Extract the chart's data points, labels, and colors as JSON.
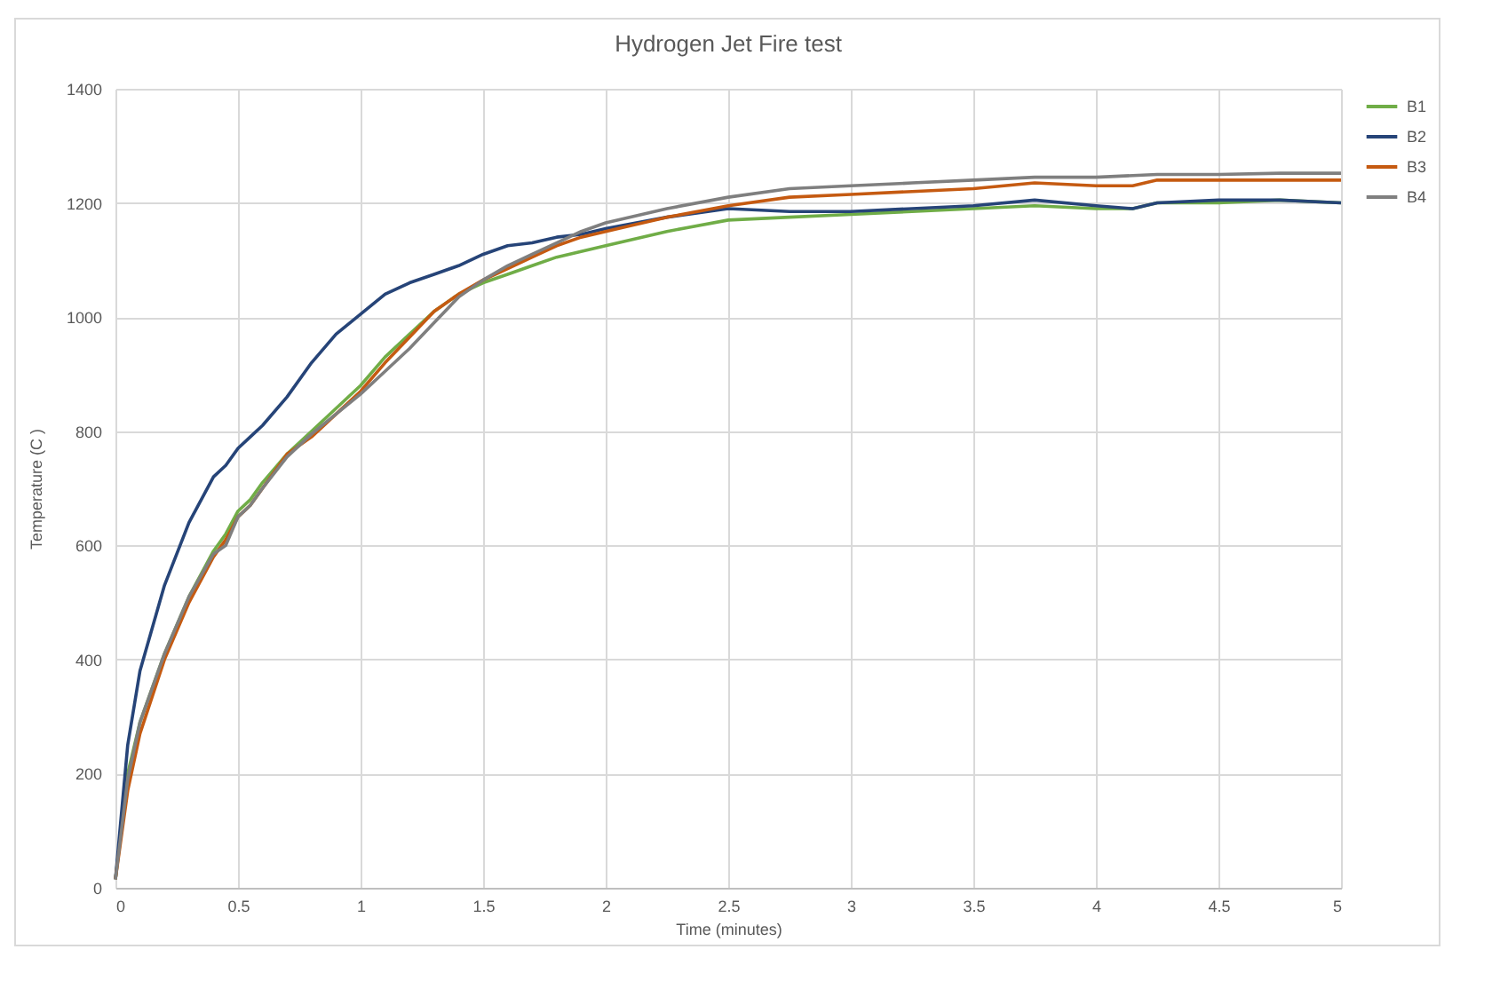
{
  "chart_data": {
    "type": "line",
    "title": "Hydrogen Jet Fire test",
    "xlabel": "Time (minutes)",
    "ylabel": "Temperature (C )",
    "x": [
      0,
      0.05,
      0.1,
      0.2,
      0.3,
      0.4,
      0.45,
      0.5,
      0.55,
      0.6,
      0.7,
      0.8,
      0.9,
      1.0,
      1.1,
      1.2,
      1.3,
      1.4,
      1.5,
      1.6,
      1.7,
      1.8,
      1.9,
      2.0,
      2.25,
      2.5,
      2.75,
      3.0,
      3.25,
      3.5,
      3.75,
      4.0,
      4.15,
      4.25,
      4.5,
      4.75,
      5
    ],
    "series": [
      {
        "name": "B1",
        "color": "#70ad47",
        "values": [
          15,
          200,
          290,
          410,
          510,
          590,
          620,
          660,
          680,
          710,
          760,
          800,
          840,
          880,
          930,
          970,
          1010,
          1040,
          1060,
          1075,
          1090,
          1105,
          1115,
          1125,
          1150,
          1170,
          1175,
          1180,
          1185,
          1190,
          1195,
          1190,
          1190,
          1200,
          1200,
          1205,
          1200
        ]
      },
      {
        "name": "B2",
        "color": "#264478",
        "values": [
          15,
          250,
          380,
          530,
          640,
          720,
          740,
          770,
          790,
          810,
          860,
          920,
          970,
          1005,
          1040,
          1060,
          1075,
          1090,
          1110,
          1125,
          1130,
          1140,
          1145,
          1155,
          1175,
          1190,
          1185,
          1185,
          1190,
          1195,
          1205,
          1195,
          1190,
          1200,
          1205,
          1205,
          1200
        ]
      },
      {
        "name": "B3",
        "color": "#c55a11",
        "values": [
          15,
          170,
          270,
          400,
          500,
          580,
          610,
          650,
          670,
          700,
          760,
          790,
          830,
          870,
          920,
          965,
          1010,
          1040,
          1065,
          1085,
          1105,
          1125,
          1140,
          1150,
          1175,
          1195,
          1210,
          1215,
          1220,
          1225,
          1235,
          1230,
          1230,
          1240,
          1240,
          1240,
          1240
        ]
      },
      {
        "name": "B4",
        "color": "#7f7f7f",
        "values": [
          15,
          190,
          290,
          410,
          510,
          585,
          600,
          650,
          670,
          700,
          755,
          795,
          830,
          865,
          905,
          945,
          990,
          1035,
          1065,
          1090,
          1110,
          1130,
          1150,
          1165,
          1190,
          1210,
          1225,
          1230,
          1235,
          1240,
          1245,
          1245,
          1248,
          1250,
          1250,
          1252,
          1252
        ]
      }
    ],
    "xlim": [
      0,
      5
    ],
    "xticks": [
      0,
      0.5,
      1,
      1.5,
      2,
      2.5,
      3,
      3.5,
      4,
      4.5,
      5
    ],
    "ylim": [
      0,
      1400
    ],
    "yticks": [
      0,
      200,
      400,
      600,
      800,
      1000,
      1200,
      1400
    ],
    "grid": true,
    "legend": "right"
  }
}
